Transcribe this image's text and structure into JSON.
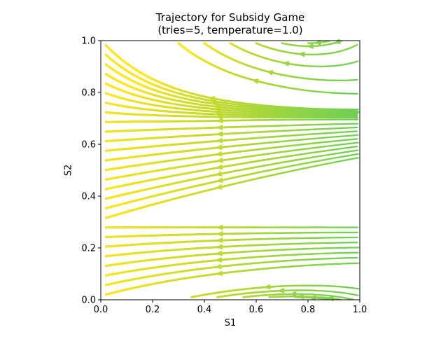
{
  "chart_data": {
    "type": "streamplot",
    "title": "Trajectory for Subsidy Game",
    "subtitle": "(tries=5, temperature=1.0)",
    "xlabel": "S1",
    "ylabel": "S2",
    "xlim": [
      0.0,
      1.0
    ],
    "ylim": [
      0.0,
      1.0
    ],
    "xticks": [
      "0.0",
      "0.2",
      "0.4",
      "0.6",
      "0.8",
      "1.0"
    ],
    "yticks": [
      "0.0",
      "0.2",
      "0.4",
      "0.6",
      "0.8",
      "1.0"
    ],
    "grid": false,
    "colormap": [
      "#2f6f8e",
      "#21918c",
      "#35b779",
      "#7ad151",
      "#c5d92d",
      "#fde725"
    ],
    "attractors": [
      {
        "s1": 0.95,
        "s2": 0.7
      },
      {
        "s1": 0.95,
        "s2": 0.28
      },
      {
        "s1": 1.0,
        "s2": 0.93
      },
      {
        "s1": 1.0,
        "s2": 0.03
      }
    ]
  }
}
